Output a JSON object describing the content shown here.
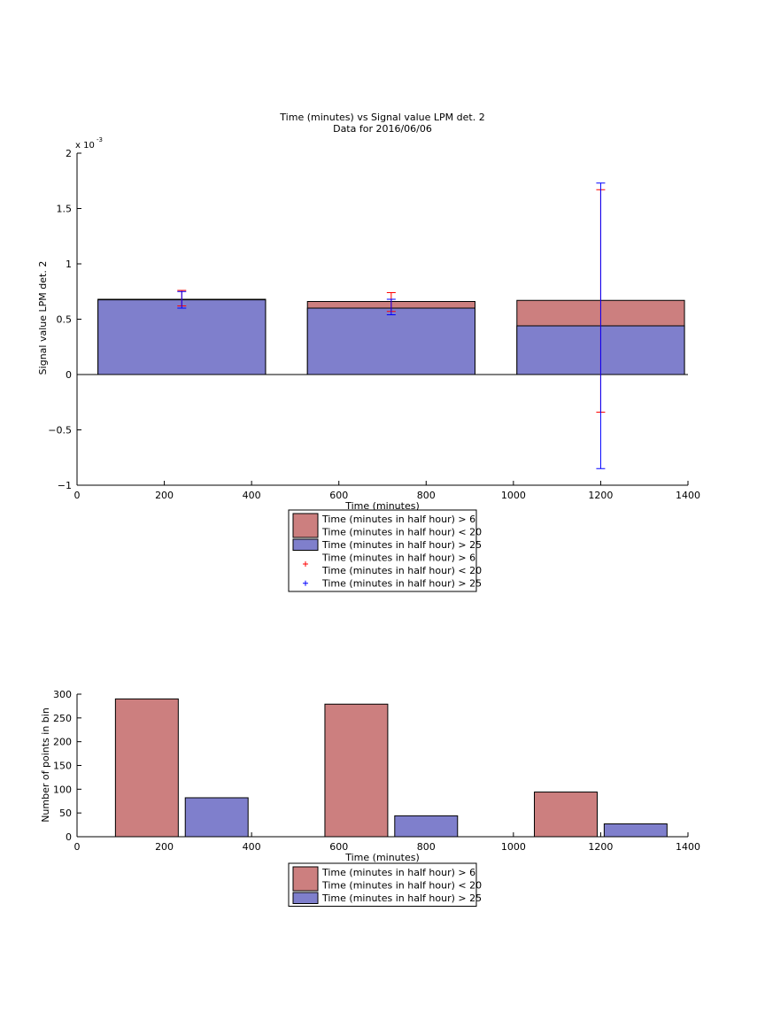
{
  "colors": {
    "red_fill": "#cc7f7f",
    "blue_fill": "#7f7fcc",
    "red_err": "#ff0000",
    "blue_err": "#0000ff",
    "axis": "#000000"
  },
  "chart_data": [
    {
      "type": "bar",
      "title": "Time (minutes) vs Signal value LPM det. 2",
      "subtitle": "Data for 2016/06/06",
      "xlabel": "Time (minutes)",
      "ylabel": "Signal value LPM det. 2",
      "exponent_label": "x 10",
      "exponent_power": "-3",
      "xlim": [
        0,
        1400
      ],
      "ylim": [
        -1,
        2
      ],
      "xticks": [
        0,
        200,
        400,
        600,
        800,
        1000,
        1200,
        1400
      ],
      "yticks": [
        -1,
        -0.5,
        0,
        0.5,
        1,
        1.5,
        2
      ],
      "ytick_labels": [
        "−1",
        "−0.5",
        "0",
        "0.5",
        "1",
        "1.5",
        "2"
      ],
      "grid": false,
      "legend_position": "below",
      "bar_centers": [
        240,
        720,
        1200
      ],
      "bar_width": 384,
      "series": [
        {
          "name": "Time (minutes in half hour) > 6\nTime (minutes in half hour) < 20",
          "values": [
            0.68,
            0.66,
            0.67
          ],
          "color": "#cc7f7f",
          "err_low": [
            0.62,
            0.57,
            -0.34
          ],
          "err_high": [
            0.76,
            0.74,
            1.67
          ],
          "err_color": "#ff0000"
        },
        {
          "name": "Time (minutes in half hour) > 25",
          "values": [
            0.675,
            0.6,
            0.44
          ],
          "color": "#7f7fcc",
          "err_low": [
            0.6,
            0.54,
            -0.85
          ],
          "err_high": [
            0.75,
            0.68,
            1.73
          ],
          "err_color": "#0000ff"
        }
      ],
      "legend": [
        {
          "kind": "patch",
          "color": "#cc7f7f",
          "lines": [
            "Time (minutes in half hour) > 6",
            "Time (minutes in half hour) < 20"
          ]
        },
        {
          "kind": "patch",
          "color": "#7f7fcc",
          "lines": [
            "Time (minutes in half hour) > 25"
          ]
        },
        {
          "kind": "marker",
          "color": "#ff0000",
          "lines": [
            "Time (minutes in half hour) > 6",
            "Time (minutes in half hour) < 20"
          ]
        },
        {
          "kind": "marker",
          "color": "#0000ff",
          "lines": [
            "Time (minutes in half hour) > 25"
          ]
        }
      ]
    },
    {
      "type": "bar",
      "title": "",
      "xlabel": "Time (minutes)",
      "ylabel": "Number of points in bin",
      "xlim": [
        0,
        1400
      ],
      "ylim": [
        0,
        300
      ],
      "xticks": [
        0,
        200,
        400,
        600,
        800,
        1000,
        1200,
        1400
      ],
      "yticks": [
        0,
        50,
        100,
        150,
        200,
        250,
        300
      ],
      "ytick_labels": [
        "0",
        "50",
        "100",
        "150",
        "200",
        "250",
        "300"
      ],
      "grid": false,
      "legend_position": "below",
      "bar_width": 144,
      "series": [
        {
          "name": "Time (minutes in half hour) > 6\nTime (minutes in half hour) < 20",
          "x": [
            160,
            640,
            1120
          ],
          "values": [
            290,
            279,
            94
          ],
          "color": "#cc7f7f"
        },
        {
          "name": "Time (minutes in half hour) > 25",
          "x": [
            320,
            800,
            1280
          ],
          "values": [
            82,
            44,
            27
          ],
          "color": "#7f7fcc"
        }
      ],
      "legend": [
        {
          "kind": "patch",
          "color": "#cc7f7f",
          "lines": [
            "Time (minutes in half hour) > 6",
            "Time (minutes in half hour) < 20"
          ]
        },
        {
          "kind": "patch",
          "color": "#7f7fcc",
          "lines": [
            "Time (minutes in half hour) > 25"
          ]
        }
      ]
    }
  ]
}
